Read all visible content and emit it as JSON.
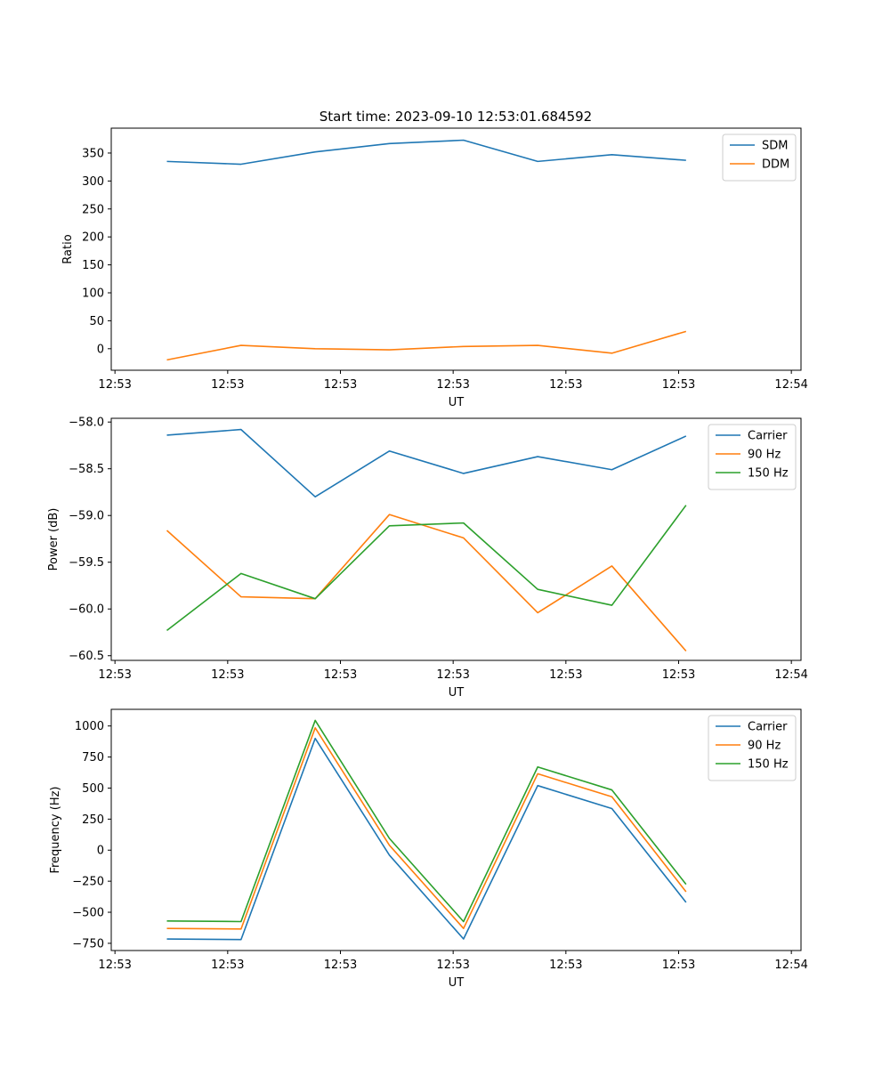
{
  "figure_title": "Start time: 2023-09-10 12:53:01.684592",
  "colors": {
    "blue": "#1f77b4",
    "orange": "#ff7f0e",
    "green": "#2ca02c",
    "axis": "#000000",
    "legend_border": "#cccccc"
  },
  "chart_data": [
    {
      "type": "line",
      "title": "Start time: 2023-09-10 12:53:01.684592",
      "xlabel": "UT",
      "ylabel": "Ratio",
      "x": [
        0,
        1,
        2,
        3,
        4,
        5,
        6,
        7
      ],
      "xlim": [
        -0.75,
        8.55
      ],
      "xticks": [
        -0.7,
        0.82,
        2.34,
        3.86,
        5.38,
        6.9,
        8.42
      ],
      "xtick_labels": [
        "12:53",
        "12:53",
        "12:53",
        "12:53",
        "12:53",
        "12:53",
        "12:54"
      ],
      "ylim": [
        -38.5,
        394.5
      ],
      "yticks": [
        0,
        50,
        100,
        150,
        200,
        250,
        300,
        350
      ],
      "ytick_labels": [
        "0",
        "50",
        "100",
        "150",
        "200",
        "250",
        "300",
        "350"
      ],
      "legend_position": "top-right",
      "series": [
        {
          "name": "SDM",
          "color": "#1f77b4",
          "values": [
            335,
            330,
            352,
            367,
            373,
            335,
            347,
            337
          ]
        },
        {
          "name": "DDM",
          "color": "#ff7f0e",
          "values": [
            -20,
            6,
            0,
            -2,
            4,
            6,
            -8,
            31
          ]
        }
      ]
    },
    {
      "type": "line",
      "title": "",
      "xlabel": "UT",
      "ylabel": "Power (dB)",
      "x": [
        0,
        1,
        2,
        3,
        4,
        5,
        6,
        7
      ],
      "xlim": [
        -0.75,
        8.55
      ],
      "xticks": [
        -0.7,
        0.82,
        2.34,
        3.86,
        5.38,
        6.9,
        8.42
      ],
      "xtick_labels": [
        "12:53",
        "12:53",
        "12:53",
        "12:53",
        "12:53",
        "12:53",
        "12:54"
      ],
      "ylim": [
        -60.55,
        -57.96
      ],
      "yticks": [
        -60.5,
        -60.0,
        -59.5,
        -59.0,
        -58.5,
        -58.0
      ],
      "ytick_labels": [
        "−60.5",
        "−60.0",
        "−59.5",
        "−59.0",
        "−58.5",
        "−58.0"
      ],
      "legend_position": "top-right",
      "series": [
        {
          "name": "Carrier",
          "color": "#1f77b4",
          "values": [
            -58.14,
            -58.08,
            -58.8,
            -58.31,
            -58.55,
            -58.37,
            -58.51,
            -58.15
          ]
        },
        {
          "name": "90 Hz",
          "color": "#ff7f0e",
          "values": [
            -59.16,
            -59.87,
            -59.89,
            -58.99,
            -59.24,
            -60.04,
            -59.54,
            -60.45
          ]
        },
        {
          "name": "150 Hz",
          "color": "#2ca02c",
          "values": [
            -60.23,
            -59.62,
            -59.89,
            -59.11,
            -59.08,
            -59.79,
            -59.96,
            -58.89
          ]
        }
      ]
    },
    {
      "type": "line",
      "title": "",
      "xlabel": "UT",
      "ylabel": "Frequency (Hz)",
      "x": [
        0,
        1,
        2,
        3,
        4,
        5,
        6,
        7
      ],
      "xlim": [
        -0.75,
        8.55
      ],
      "xticks": [
        -0.7,
        0.82,
        2.34,
        3.86,
        5.38,
        6.9,
        8.42
      ],
      "xtick_labels": [
        "12:53",
        "12:53",
        "12:53",
        "12:53",
        "12:53",
        "12:53",
        "12:54"
      ],
      "ylim": [
        -808,
        1134
      ],
      "yticks": [
        -750,
        -500,
        -250,
        0,
        250,
        500,
        750,
        1000
      ],
      "ytick_labels": [
        "−750",
        "−500",
        "−250",
        "0",
        "250",
        "500",
        "750",
        "1000"
      ],
      "legend_position": "top-right",
      "series": [
        {
          "name": "Carrier",
          "color": "#1f77b4",
          "values": [
            -715,
            -720,
            900,
            -40,
            -715,
            520,
            335,
            -420
          ]
        },
        {
          "name": "90 Hz",
          "color": "#ff7f0e",
          "values": [
            -630,
            -635,
            985,
            40,
            -630,
            615,
            430,
            -335
          ]
        },
        {
          "name": "150 Hz",
          "color": "#2ca02c",
          "values": [
            -570,
            -575,
            1045,
            95,
            -575,
            670,
            485,
            -275
          ]
        }
      ]
    }
  ]
}
